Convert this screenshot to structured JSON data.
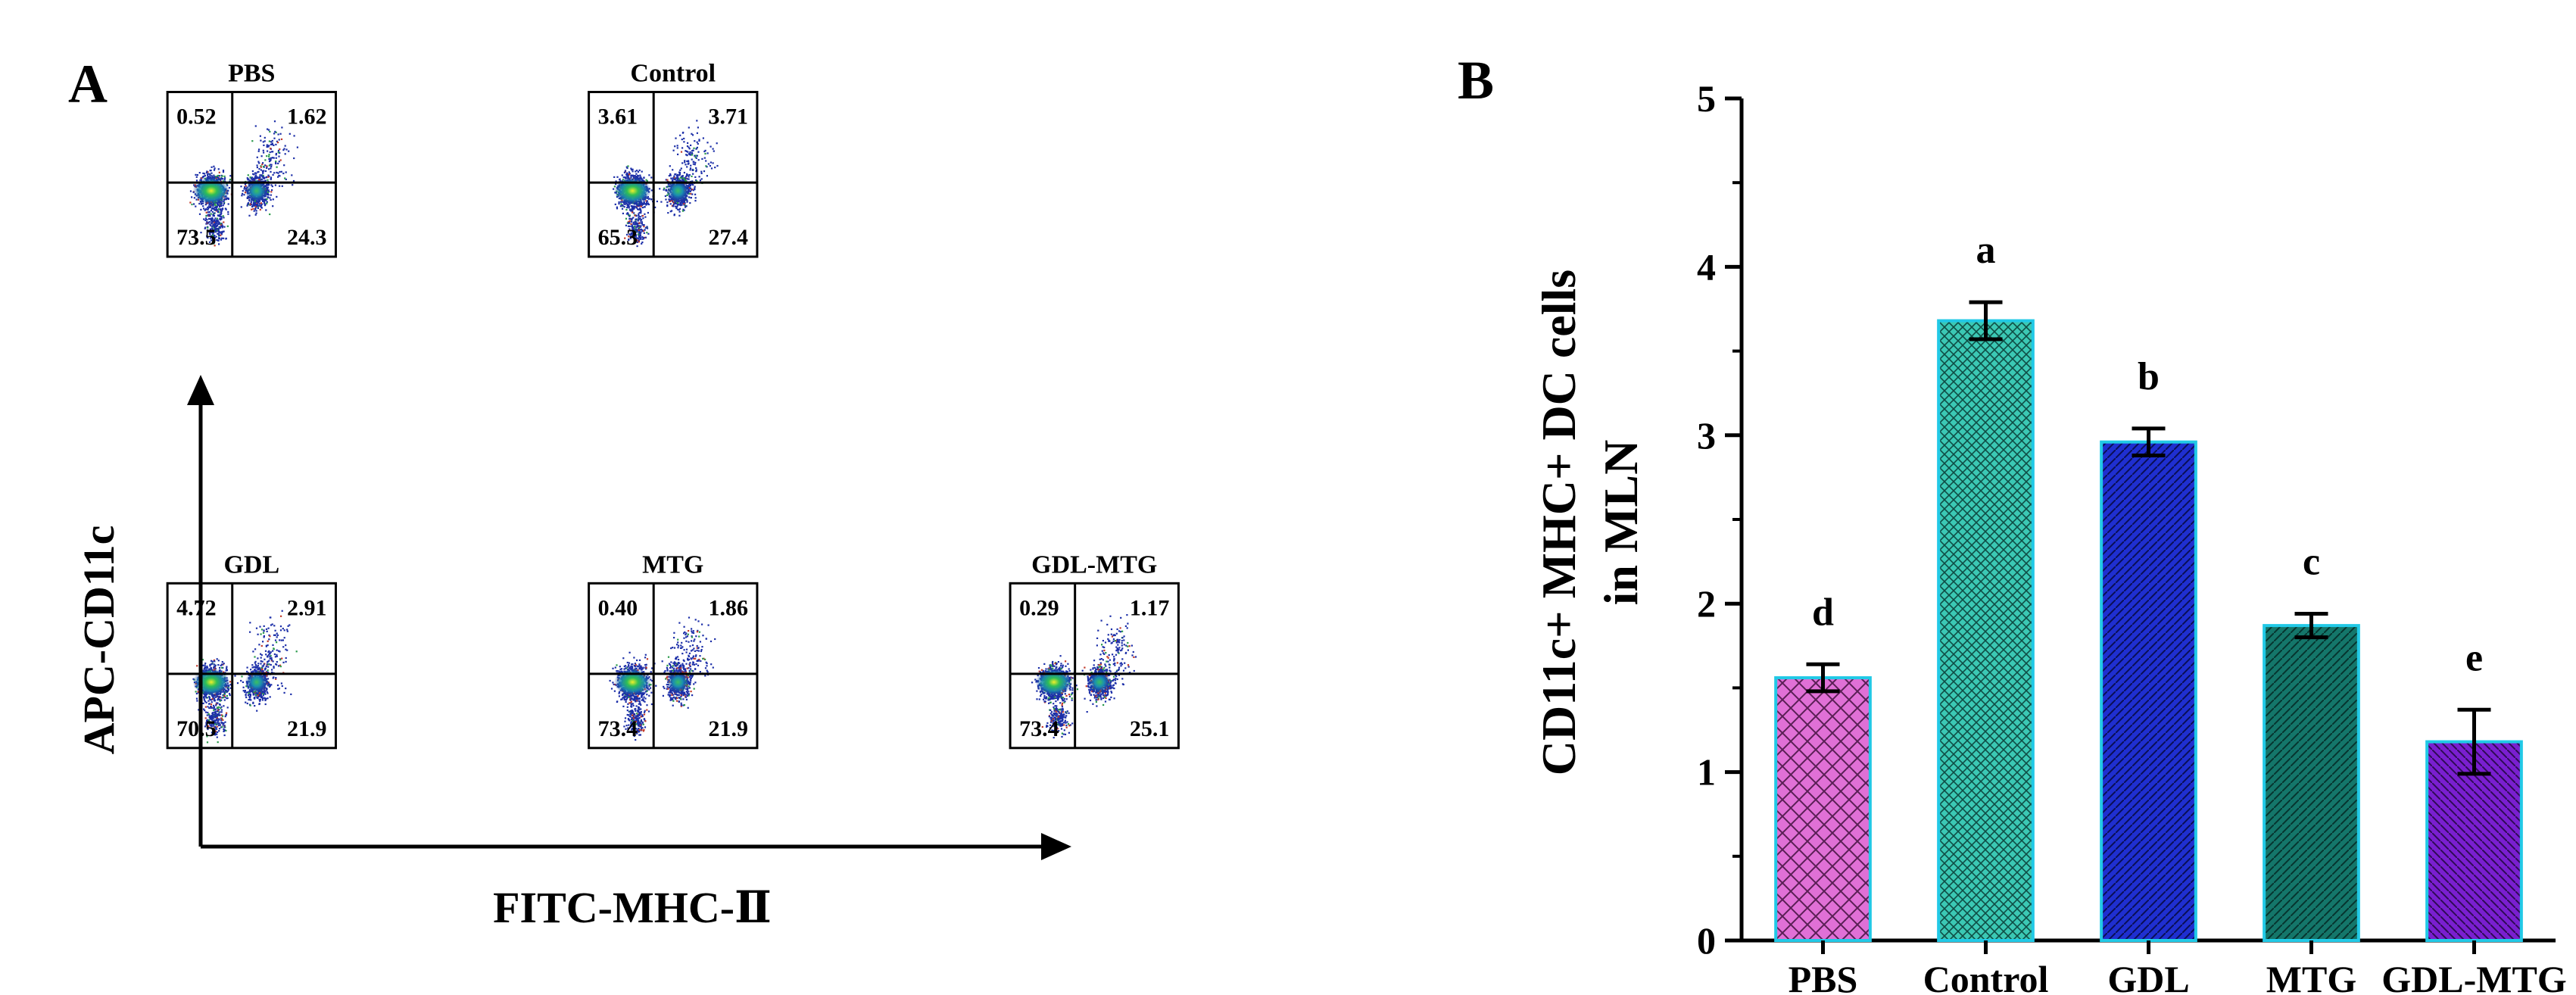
{
  "panel_a": {
    "label": "A",
    "y_axis_label": "APC-CD11c",
    "x_axis_label": "FITC-MHC-Ⅱ",
    "plots": [
      {
        "title": "PBS",
        "q_ul": "0.52",
        "q_ur": "1.62",
        "q_ll": "73.5",
        "q_lr": "24.3"
      },
      {
        "title": "Control",
        "q_ul": "3.61",
        "q_ur": "3.71",
        "q_ll": "65.3",
        "q_lr": "27.4"
      },
      {
        "title": "GDL",
        "q_ul": "4.72",
        "q_ur": "2.91",
        "q_ll": "70.5",
        "q_lr": "21.9"
      },
      {
        "title": "MTG",
        "q_ul": "0.40",
        "q_ur": "1.86",
        "q_ll": "73.4",
        "q_lr": "21.9"
      },
      {
        "title": "GDL-MTG",
        "q_ul": "0.29",
        "q_ur": "1.17",
        "q_ll": "73.4",
        "q_lr": "25.1"
      }
    ]
  },
  "panel_b": {
    "label": "B"
  },
  "chart_data": {
    "type": "bar",
    "title": "",
    "xlabel": "",
    "ylabel": "CD11c+ MHC+ DC cells in MLN",
    "ylabel_lines": [
      "CD11c+ MHC+ DC cells",
      "in MLN"
    ],
    "categories": [
      "PBS",
      "Control",
      "GDL",
      "MTG",
      "GDL-MTG"
    ],
    "values": [
      1.56,
      3.68,
      2.96,
      1.87,
      1.18
    ],
    "errors": [
      0.08,
      0.11,
      0.08,
      0.07,
      0.19
    ],
    "significance_letters": [
      "d",
      "a",
      "b",
      "c",
      "e"
    ],
    "bar_colors": [
      "#e070d6",
      "#3bc8b4",
      "#1f2fd0",
      "#14766a",
      "#7a1fd0"
    ],
    "ylim": [
      0,
      5
    ],
    "yticks": [
      "0",
      "1",
      "2",
      "3",
      "4",
      "5"
    ],
    "grid": false
  }
}
